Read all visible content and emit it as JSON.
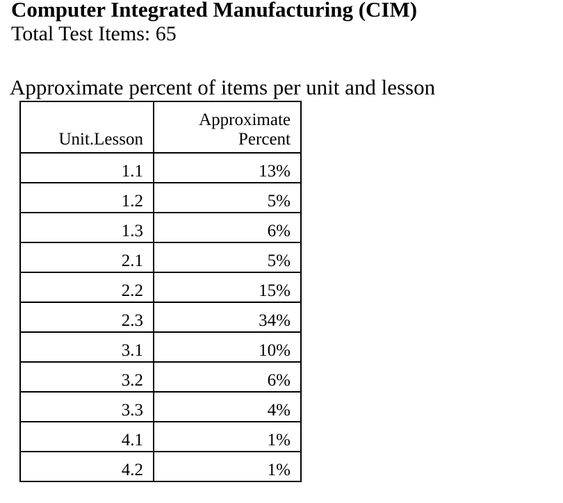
{
  "title": "Computer Integrated Manufacturing (CIM)",
  "total_items": "Total Test Items: 65",
  "caption": "Approximate percent of items per unit and lesson",
  "table": {
    "headers": [
      "Unit.Lesson",
      "Approximate",
      "Percent"
    ],
    "rows": [
      {
        "lesson": "1.1",
        "percent": "13%"
      },
      {
        "lesson": "1.2",
        "percent": "5%"
      },
      {
        "lesson": "1.3",
        "percent": "6%"
      },
      {
        "lesson": "2.1",
        "percent": "5%"
      },
      {
        "lesson": "2.2",
        "percent": "15%"
      },
      {
        "lesson": "2.3",
        "percent": "34%"
      },
      {
        "lesson": "3.1",
        "percent": "10%"
      },
      {
        "lesson": "3.2",
        "percent": "6%"
      },
      {
        "lesson": "3.3",
        "percent": "4%"
      },
      {
        "lesson": "4.1",
        "percent": "1%"
      },
      {
        "lesson": "4.2",
        "percent": "1%"
      }
    ]
  }
}
